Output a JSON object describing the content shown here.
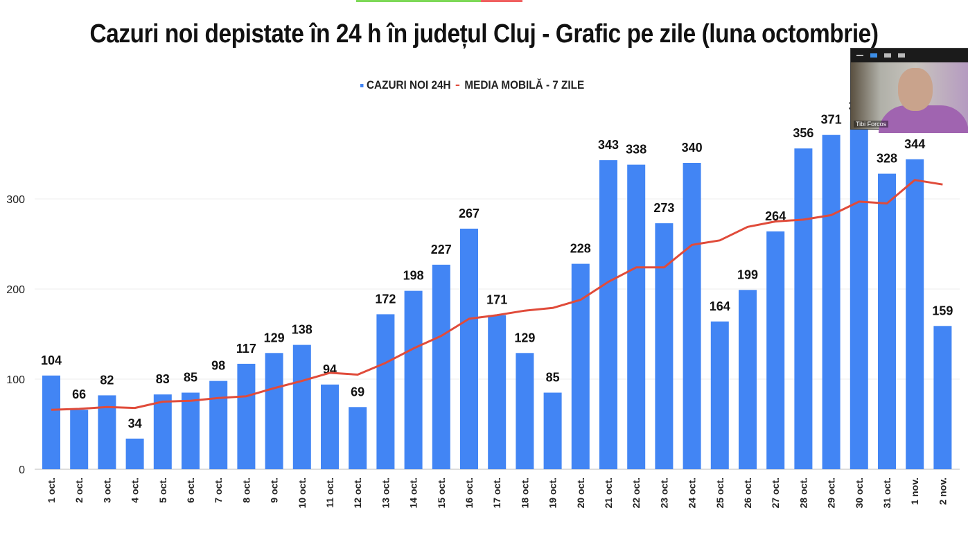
{
  "chart_data": {
    "type": "bar",
    "title": "Cazuri noi depistate în 24 h în județul Cluj - Grafic pe zile (luna octombrie)",
    "legend": {
      "position": "top",
      "entries": [
        "CAZURI NOI 24H",
        "MEDIA MOBILĂ - 7 ZILE"
      ]
    },
    "categories": [
      "1 oct.",
      "2 oct.",
      "3 oct.",
      "4 oct.",
      "5 oct.",
      "6 oct.",
      "7 oct.",
      "8 oct.",
      "9 oct.",
      "10 oct.",
      "11 oct.",
      "12 oct.",
      "13 oct.",
      "14 oct.",
      "15 oct.",
      "16 oct.",
      "17 oct.",
      "18 oct.",
      "19 oct.",
      "20 oct.",
      "21 oct.",
      "22 oct.",
      "23 oct.",
      "24 oct.",
      "25 oct.",
      "26 oct.",
      "27 oct.",
      "28 oct.",
      "29 oct.",
      "30 oct.",
      "31 oct.",
      "1 nov.",
      "2 nov."
    ],
    "series": [
      {
        "name": "CAZURI NOI 24H",
        "type": "bar",
        "color": "#4285f4",
        "values": [
          104,
          66,
          82,
          34,
          83,
          85,
          98,
          117,
          129,
          138,
          94,
          69,
          172,
          198,
          227,
          267,
          171,
          129,
          85,
          228,
          343,
          338,
          273,
          340,
          164,
          199,
          264,
          356,
          371,
          386,
          328,
          344,
          159
        ]
      },
      {
        "name": "MEDIA MOBILĂ - 7 ZILE",
        "type": "line",
        "color": "#e04b3a",
        "values": [
          66,
          67,
          69,
          68,
          75,
          76,
          79,
          81,
          90,
          98,
          107,
          105,
          118,
          134,
          148,
          167,
          171,
          176,
          179,
          188,
          208,
          224,
          224,
          249,
          254,
          269,
          275,
          277,
          282,
          297,
          295,
          321,
          316
        ]
      }
    ],
    "yticks": [
      0,
      100,
      200,
      300
    ],
    "ylim": [
      0,
      390
    ],
    "grid": true
  },
  "webcam": {
    "participant": "Tibi Forcos"
  }
}
